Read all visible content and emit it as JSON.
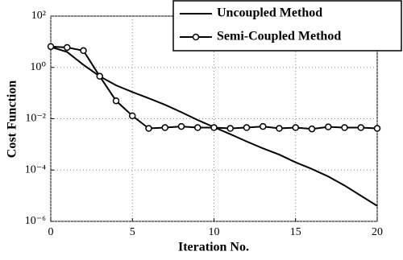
{
  "chart_data": {
    "type": "line",
    "xlabel": "Iteration No.",
    "ylabel": "Cost Function",
    "x": [
      0,
      1,
      2,
      3,
      4,
      5,
      6,
      7,
      8,
      9,
      10,
      11,
      12,
      13,
      14,
      15,
      16,
      17,
      18,
      19,
      20
    ],
    "series": [
      {
        "name": "Uncoupled Method",
        "color": "#000000",
        "marker": false,
        "values": [
          6.3,
          4,
          1.26,
          0.45,
          0.2,
          0.11,
          0.063,
          0.035,
          0.018,
          0.0089,
          0.0047,
          0.0025,
          0.0013,
          0.0007,
          0.0004,
          0.0002,
          0.00011,
          5.6e-05,
          2.5e-05,
          1e-05,
          4e-06
        ]
      },
      {
        "name": "Semi-Coupled Method",
        "color": "#000000",
        "marker": true,
        "values": [
          6.5,
          6,
          4.5,
          0.45,
          0.05,
          0.013,
          0.0042,
          0.0045,
          0.005,
          0.0045,
          0.0045,
          0.0042,
          0.0045,
          0.005,
          0.0042,
          0.0045,
          0.004,
          0.0048,
          0.0045,
          0.0045,
          0.0042
        ]
      }
    ],
    "xlim": [
      0,
      20
    ],
    "xticks": [
      0,
      5,
      10,
      15,
      20
    ],
    "ylim": [
      1e-06,
      100
    ],
    "ylog": true,
    "yticks": [
      {
        "value": 100,
        "label": "10²"
      },
      {
        "value": 1,
        "label": "10⁰"
      },
      {
        "value": 0.01,
        "label": "10⁻²"
      },
      {
        "value": 0.0001,
        "label": "10⁻⁴"
      },
      {
        "value": 1e-06,
        "label": "10⁻⁶"
      }
    ],
    "grid": true,
    "legend": "upper-right"
  }
}
